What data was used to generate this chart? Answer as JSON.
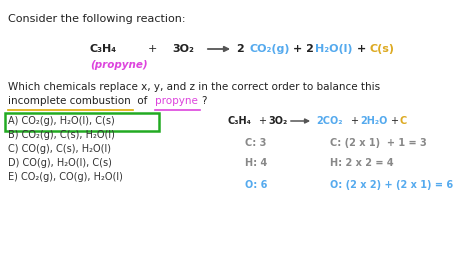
{
  "bg_color": "#ffffff",
  "title_text": "Consider the following reaction:",
  "title_color": "#222222",
  "propyne_color": "#dd44dd",
  "incomplete_color": "#ddaa00",
  "propyne2_color": "#dd44dd",
  "options": [
    "A) CO₂(g), H₂O(l), C(s)",
    "B) CO₂(g), C(s), H₂O(l)",
    "C) CO(g), C(s), H₂O(l)",
    "D) CO(g), H₂O(l), C(s)",
    "E) CO₂(g), CO(g), H₂O(l)"
  ],
  "options_color": "#333333",
  "answer_box_color": "#22aa22",
  "product_co2_color": "#55aaee",
  "product_c_color": "#ddaa22",
  "gray_color": "#888888",
  "check_c_left": "C: 3",
  "check_c_right": "C: (2 x 1)  + 1 = 3",
  "check_h_left": "H: 4",
  "check_h_right": "H: 2 x 2 = 4",
  "check_o_left": "O: 6",
  "check_o_right": "O: (2 x 2) + (2 x 1) = 6"
}
